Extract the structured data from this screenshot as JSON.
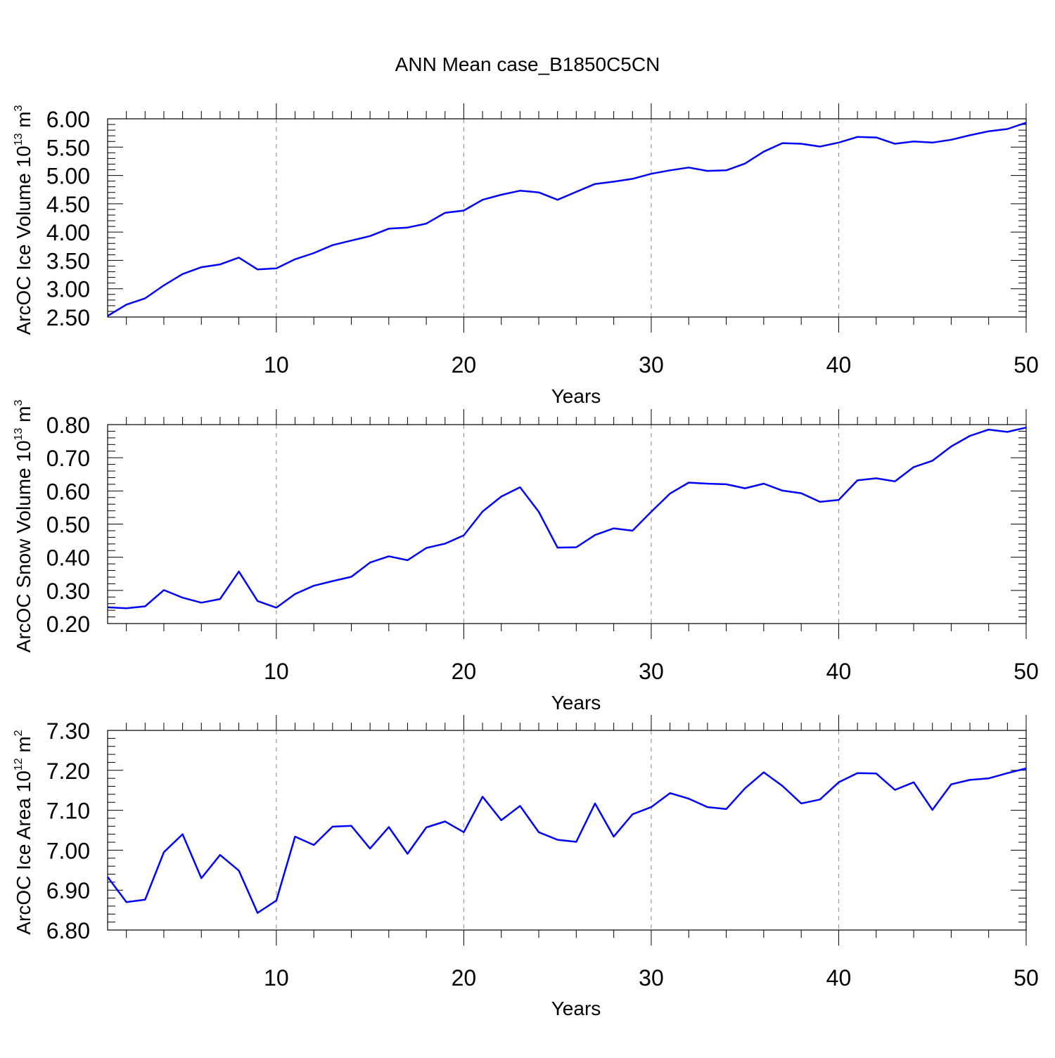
{
  "title": "ANN Mean case_B1850C5CN",
  "colors": {
    "series": "#0000ff",
    "grid": "#888888",
    "axis": "#000000"
  },
  "chart_data": [
    {
      "type": "line",
      "ylabel_main": "ArcOC Ice Volume 10",
      "ylabel_exp": "13",
      "ylabel_unit": " m",
      "ylabel_unit_exp": "3",
      "xlabel": "Years",
      "xlim": [
        1,
        50
      ],
      "ylim": [
        2.5,
        6.0
      ],
      "yticks": [
        2.5,
        3.0,
        3.5,
        4.0,
        4.5,
        5.0,
        5.5,
        6.0
      ],
      "ytick_labels": [
        "2.50",
        "3.00",
        "3.50",
        "4.00",
        "4.50",
        "5.00",
        "5.50",
        "6.00"
      ],
      "xticks": [
        10,
        20,
        30,
        40,
        50
      ],
      "xtick_labels": [
        "10",
        "20",
        "30",
        "40",
        "50"
      ],
      "grid_x": [
        10,
        20,
        30,
        40
      ],
      "x": [
        1,
        2,
        3,
        4,
        5,
        6,
        7,
        8,
        9,
        10,
        11,
        12,
        13,
        14,
        15,
        16,
        17,
        18,
        19,
        20,
        21,
        22,
        23,
        24,
        25,
        26,
        27,
        28,
        29,
        30,
        31,
        32,
        33,
        34,
        35,
        36,
        37,
        38,
        39,
        40,
        41,
        42,
        43,
        44,
        45,
        46,
        47,
        48,
        49,
        50
      ],
      "series": [
        {
          "name": "ArcOC Ice Volume",
          "values": [
            2.52,
            2.72,
            2.83,
            3.06,
            3.26,
            3.38,
            3.43,
            3.55,
            3.34,
            3.36,
            3.52,
            3.63,
            3.77,
            3.85,
            3.93,
            4.06,
            4.08,
            4.15,
            4.34,
            4.38,
            4.57,
            4.66,
            4.73,
            4.7,
            4.57,
            4.71,
            4.85,
            4.89,
            4.94,
            5.03,
            5.09,
            5.14,
            5.08,
            5.09,
            5.21,
            5.42,
            5.57,
            5.56,
            5.51,
            5.58,
            5.68,
            5.67,
            5.56,
            5.6,
            5.58,
            5.63,
            5.71,
            5.78,
            5.82,
            5.93
          ]
        }
      ]
    },
    {
      "type": "line",
      "ylabel_main": "ArcOC Snow Volume 10",
      "ylabel_exp": "13",
      "ylabel_unit": " m",
      "ylabel_unit_exp": "3",
      "xlabel": "Years",
      "xlim": [
        1,
        50
      ],
      "ylim": [
        0.2,
        0.8
      ],
      "yticks": [
        0.2,
        0.3,
        0.4,
        0.5,
        0.6,
        0.7,
        0.8
      ],
      "ytick_labels": [
        "0.20",
        "0.30",
        "0.40",
        "0.50",
        "0.60",
        "0.70",
        "0.80"
      ],
      "xticks": [
        10,
        20,
        30,
        40,
        50
      ],
      "xtick_labels": [
        "10",
        "20",
        "30",
        "40",
        "50"
      ],
      "grid_x": [
        10,
        20,
        30,
        40
      ],
      "x": [
        1,
        2,
        3,
        4,
        5,
        6,
        7,
        8,
        9,
        10,
        11,
        12,
        13,
        14,
        15,
        16,
        17,
        18,
        19,
        20,
        21,
        22,
        23,
        24,
        25,
        26,
        27,
        28,
        29,
        30,
        31,
        32,
        33,
        34,
        35,
        36,
        37,
        38,
        39,
        40,
        41,
        42,
        43,
        44,
        45,
        46,
        47,
        48,
        49,
        50
      ],
      "series": [
        {
          "name": "ArcOC Snow Volume",
          "values": [
            0.249,
            0.246,
            0.252,
            0.301,
            0.278,
            0.263,
            0.274,
            0.357,
            0.268,
            0.248,
            0.289,
            0.314,
            0.328,
            0.341,
            0.384,
            0.403,
            0.391,
            0.428,
            0.441,
            0.466,
            0.538,
            0.583,
            0.611,
            0.537,
            0.429,
            0.43,
            0.467,
            0.487,
            0.48,
            0.537,
            0.592,
            0.625,
            0.622,
            0.62,
            0.608,
            0.622,
            0.601,
            0.593,
            0.567,
            0.573,
            0.632,
            0.638,
            0.629,
            0.672,
            0.691,
            0.734,
            0.766,
            0.785,
            0.778,
            0.791
          ]
        }
      ]
    },
    {
      "type": "line",
      "ylabel_main": "ArcOC Ice Area 10",
      "ylabel_exp": "12",
      "ylabel_unit": " m",
      "ylabel_unit_exp": "2",
      "xlabel": "Years",
      "xlim": [
        1,
        50
      ],
      "ylim": [
        6.8,
        7.3
      ],
      "yticks": [
        6.8,
        6.9,
        7.0,
        7.1,
        7.2,
        7.3
      ],
      "ytick_labels": [
        "6.80",
        "6.90",
        "7.00",
        "7.10",
        "7.20",
        "7.30"
      ],
      "xticks": [
        10,
        20,
        30,
        40,
        50
      ],
      "xtick_labels": [
        "10",
        "20",
        "30",
        "40",
        "50"
      ],
      "grid_x": [
        10,
        20,
        30,
        40
      ],
      "x": [
        1,
        2,
        3,
        4,
        5,
        6,
        7,
        8,
        9,
        10,
        11,
        12,
        13,
        14,
        15,
        16,
        17,
        18,
        19,
        20,
        21,
        22,
        23,
        24,
        25,
        26,
        27,
        28,
        29,
        30,
        31,
        32,
        33,
        34,
        35,
        36,
        37,
        38,
        39,
        40,
        41,
        42,
        43,
        44,
        45,
        46,
        47,
        48,
        49,
        50
      ],
      "series": [
        {
          "name": "ArcOC Ice Area",
          "values": [
            6.933,
            6.87,
            6.876,
            6.995,
            7.04,
            6.93,
            6.988,
            6.949,
            6.843,
            6.874,
            7.034,
            7.013,
            7.059,
            7.061,
            7.004,
            7.058,
            6.991,
            7.057,
            7.072,
            7.045,
            7.134,
            7.075,
            7.111,
            7.045,
            7.026,
            7.021,
            7.117,
            7.034,
            7.09,
            7.108,
            7.143,
            7.129,
            7.108,
            7.103,
            7.155,
            7.195,
            7.161,
            7.117,
            7.127,
            7.17,
            7.193,
            7.192,
            7.151,
            7.17,
            7.101,
            7.165,
            7.176,
            7.18,
            7.193,
            7.205
          ]
        }
      ]
    }
  ]
}
